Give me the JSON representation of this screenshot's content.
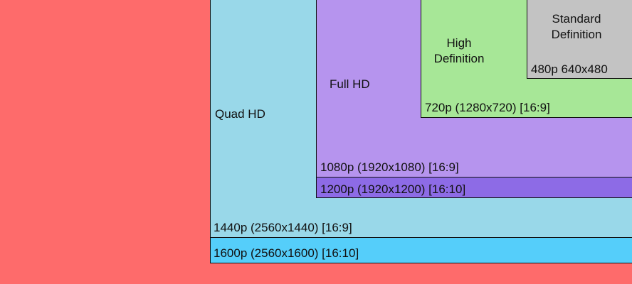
{
  "diagram": {
    "colors": {
      "outer": "#fe6b6b",
      "qhd_1600": "#55cefa",
      "qhd_1440": "#99d8e9",
      "fhd_1200": "#8d6be6",
      "fhd_1080": "#b694ee",
      "hd_720": "#a7e797",
      "sd_480": "#c3c3c3"
    },
    "labels": {
      "quad_hd": "Quad HD",
      "full_hd": "Full HD",
      "high_def_line1": "High",
      "high_def_line2": "Definition",
      "standard_def_line1": "Standard",
      "standard_def_line2": "Definition",
      "res_480": "480p 640x480",
      "res_720": "720p (1280x720) [16:9]",
      "res_1080": "1080p (1920x1080) [16:9]",
      "res_1200": "1200p (1920x1200) [16:10]",
      "res_1440": "1440p (2560x1440) [16:9]",
      "res_1600": "1600p (2560x1600) [16:10]"
    }
  }
}
